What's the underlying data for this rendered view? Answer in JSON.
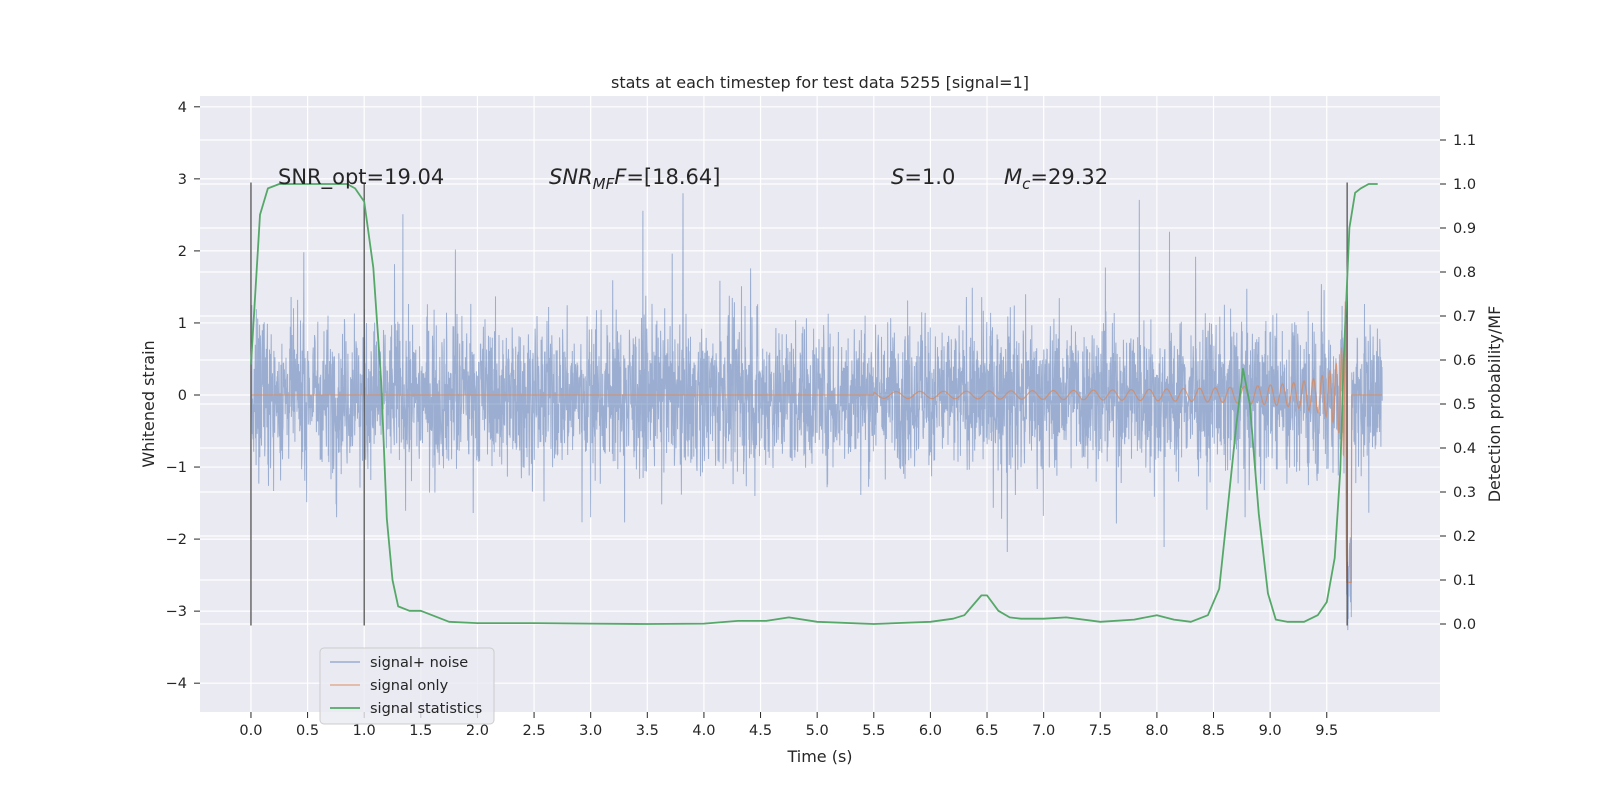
{
  "chart_data": {
    "type": "line",
    "title": "stats at each timestep for test data 5255 [signal=1]",
    "xlabel": "Time (s)",
    "ylabel": "Whitened strain",
    "ylabel_right": "Detection probability/MF",
    "xlim": [
      -0.45,
      10.5
    ],
    "ylim": [
      -4.4,
      4.15
    ],
    "ylim_right": [
      -0.2,
      1.2
    ],
    "x_ticks": [
      "0.0",
      "0.5",
      "1.0",
      "1.5",
      "2.0",
      "2.5",
      "3.0",
      "3.5",
      "4.0",
      "4.5",
      "5.0",
      "5.5",
      "6.0",
      "6.5",
      "7.0",
      "7.5",
      "8.0",
      "8.5",
      "9.0",
      "9.5"
    ],
    "y_ticks": [
      "4",
      "3",
      "2",
      "1",
      "0",
      "−1",
      "−2",
      "−3",
      "−4"
    ],
    "y_right_ticks": [
      "1.1",
      "1.0",
      "0.9",
      "0.8",
      "0.7",
      "0.6",
      "0.5",
      "0.4",
      "0.3",
      "0.2",
      "0.1",
      "0.0"
    ],
    "grid": true,
    "legend_position": "lower-left",
    "annotations": {
      "snr_opt": "SNR_opt=19.04",
      "snr_mf_sym": "SNR",
      "snr_mf_sub": "MF",
      "snr_mf_tail": "=[18.64]",
      "s_sym": "S",
      "s_tail": "=1.0",
      "mc_sym": "M",
      "mc_sub": "c",
      "mc_tail": "=29.32"
    },
    "window_markers_x": [
      0.0,
      1.0
    ],
    "series": [
      {
        "name": "signal+ noise",
        "color": "#4c72b0",
        "description_of_values": "whitened strain, noise band roughly ±1 with spikes to about ±2.8",
        "x_range": [
          0.0,
          9.99
        ],
        "envelope_peak": 2.8
      },
      {
        "name": "signal only",
        "color": "#dd8452",
        "chirp": {
          "start_time": 5.5,
          "merger_time": 9.68,
          "peak_amplitude": 3.5
        }
      },
      {
        "name": "signal statistics",
        "color": "#55a868",
        "axis": "right",
        "x": [
          0.0,
          0.08,
          0.15,
          0.25,
          0.4,
          0.6,
          0.75,
          0.85,
          0.92,
          1.0,
          1.08,
          1.15,
          1.2,
          1.25,
          1.3,
          1.4,
          1.5,
          1.6,
          1.75,
          2.0,
          2.5,
          3.0,
          3.5,
          4.0,
          4.3,
          4.55,
          4.75,
          5.0,
          5.5,
          6.0,
          6.2,
          6.3,
          6.4,
          6.45,
          6.5,
          6.6,
          6.7,
          6.8,
          7.0,
          7.2,
          7.5,
          7.8,
          8.0,
          8.15,
          8.3,
          8.45,
          8.55,
          8.62,
          8.7,
          8.76,
          8.82,
          8.9,
          8.98,
          9.05,
          9.15,
          9.3,
          9.42,
          9.5,
          9.57,
          9.62,
          9.65,
          9.7,
          9.75,
          9.8,
          9.87,
          9.95
        ],
        "values": [
          0.59,
          0.93,
          0.99,
          1.0,
          1.0,
          1.0,
          1.0,
          1.0,
          0.99,
          0.96,
          0.81,
          0.55,
          0.24,
          0.1,
          0.04,
          0.03,
          0.03,
          0.02,
          0.005,
          0.002,
          0.002,
          0.001,
          0.0,
          0.001,
          0.007,
          0.007,
          0.015,
          0.005,
          0.0,
          0.005,
          0.012,
          0.02,
          0.05,
          0.065,
          0.065,
          0.03,
          0.015,
          0.012,
          0.012,
          0.015,
          0.005,
          0.01,
          0.02,
          0.01,
          0.005,
          0.02,
          0.08,
          0.25,
          0.45,
          0.58,
          0.5,
          0.25,
          0.07,
          0.01,
          0.005,
          0.005,
          0.02,
          0.05,
          0.15,
          0.35,
          0.6,
          0.9,
          0.98,
          0.99,
          1.0,
          1.0
        ]
      }
    ]
  }
}
